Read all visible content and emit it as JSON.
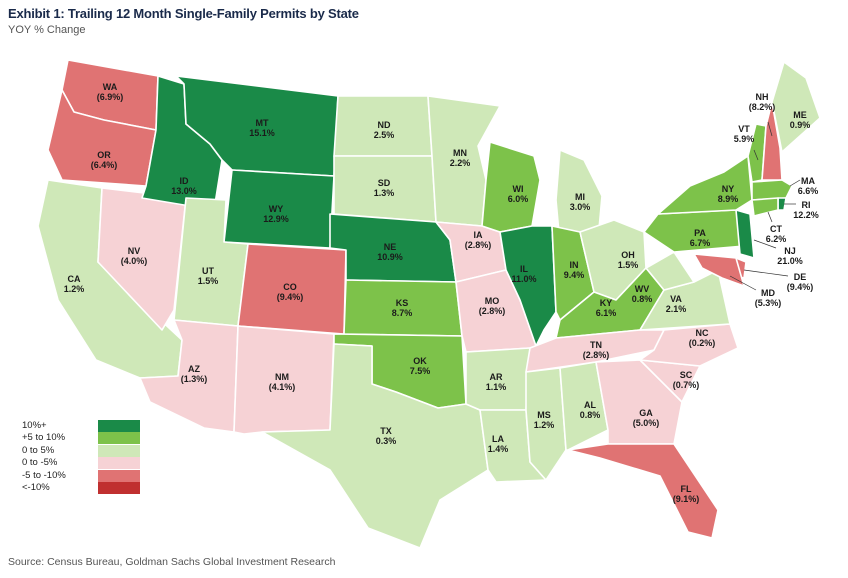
{
  "title": "Exhibit 1: Trailing 12 Month Single-Family Permits by State",
  "subtitle": "YOY % Change",
  "source": "Source: Census Bureau, Goldman Sachs Global Investment Research",
  "colors": {
    "dark_green": "#1a8a48",
    "mid_green": "#7dc24a",
    "light_green": "#cfe8b8",
    "light_pink": "#f6d2d5",
    "mid_red": "#e07373",
    "dark_red": "#c03030"
  },
  "legend": [
    {
      "label": "10%+",
      "color": "#1a8a48"
    },
    {
      "label": "+5 to 10%",
      "color": "#7dc24a"
    },
    {
      "label": "0 to 5%",
      "color": "#cfe8b8"
    },
    {
      "label": "0 to -5%",
      "color": "#f6d2d5"
    },
    {
      "label": "-5 to -10%",
      "color": "#e07373"
    },
    {
      "label": "<-10%",
      "color": "#c03030"
    }
  ],
  "states": [
    {
      "abbr": "WA",
      "value": "(6.9%)",
      "category": "mid_red"
    },
    {
      "abbr": "OR",
      "value": "(6.4%)",
      "category": "mid_red"
    },
    {
      "abbr": "CA",
      "value": "1.2%",
      "category": "light_green"
    },
    {
      "abbr": "NV",
      "value": "(4.0%)",
      "category": "light_pink"
    },
    {
      "abbr": "ID",
      "value": "13.0%",
      "category": "dark_green"
    },
    {
      "abbr": "MT",
      "value": "15.1%",
      "category": "dark_green"
    },
    {
      "abbr": "WY",
      "value": "12.9%",
      "category": "dark_green"
    },
    {
      "abbr": "UT",
      "value": "1.5%",
      "category": "light_green"
    },
    {
      "abbr": "AZ",
      "value": "(1.3%)",
      "category": "light_pink"
    },
    {
      "abbr": "CO",
      "value": "(9.4%)",
      "category": "mid_red"
    },
    {
      "abbr": "NM",
      "value": "(4.1%)",
      "category": "light_pink"
    },
    {
      "abbr": "ND",
      "value": "2.5%",
      "category": "light_green"
    },
    {
      "abbr": "SD",
      "value": "1.3%",
      "category": "light_green"
    },
    {
      "abbr": "NE",
      "value": "10.9%",
      "category": "dark_green"
    },
    {
      "abbr": "KS",
      "value": "8.7%",
      "category": "mid_green"
    },
    {
      "abbr": "OK",
      "value": "7.5%",
      "category": "mid_green"
    },
    {
      "abbr": "TX",
      "value": "0.3%",
      "category": "light_green"
    },
    {
      "abbr": "MN",
      "value": "2.2%",
      "category": "light_green"
    },
    {
      "abbr": "IA",
      "value": "(2.8%)",
      "category": "light_pink"
    },
    {
      "abbr": "MO",
      "value": "(2.8%)",
      "category": "light_pink"
    },
    {
      "abbr": "AR",
      "value": "1.1%",
      "category": "light_green"
    },
    {
      "abbr": "LA",
      "value": "1.4%",
      "category": "light_green"
    },
    {
      "abbr": "WI",
      "value": "6.0%",
      "category": "mid_green"
    },
    {
      "abbr": "IL",
      "value": "11.0%",
      "category": "dark_green"
    },
    {
      "abbr": "MI",
      "value": "3.0%",
      "category": "light_green"
    },
    {
      "abbr": "IN",
      "value": "9.4%",
      "category": "mid_green"
    },
    {
      "abbr": "OH",
      "value": "1.5%",
      "category": "light_green"
    },
    {
      "abbr": "KY",
      "value": "6.1%",
      "category": "mid_green"
    },
    {
      "abbr": "TN",
      "value": "(2.8%)",
      "category": "light_pink"
    },
    {
      "abbr": "MS",
      "value": "1.2%",
      "category": "light_green"
    },
    {
      "abbr": "AL",
      "value": "0.8%",
      "category": "light_green"
    },
    {
      "abbr": "GA",
      "value": "(5.0%)",
      "category": "light_pink"
    },
    {
      "abbr": "FL",
      "value": "(9.1%)",
      "category": "mid_red"
    },
    {
      "abbr": "SC",
      "value": "(0.7%)",
      "category": "light_pink"
    },
    {
      "abbr": "NC",
      "value": "(0.2%)",
      "category": "light_pink"
    },
    {
      "abbr": "VA",
      "value": "2.1%",
      "category": "light_green"
    },
    {
      "abbr": "WV",
      "value": "0.8%",
      "category": "light_green"
    },
    {
      "abbr": "PA",
      "value": "6.7%",
      "category": "mid_green"
    },
    {
      "abbr": "NY",
      "value": "8.9%",
      "category": "mid_green"
    },
    {
      "abbr": "VT",
      "value": "5.9%",
      "category": "mid_green"
    },
    {
      "abbr": "NH",
      "value": "(8.2%)",
      "category": "mid_red"
    },
    {
      "abbr": "ME",
      "value": "0.9%",
      "category": "light_green"
    },
    {
      "abbr": "MA",
      "value": "6.6%",
      "category": "mid_green"
    },
    {
      "abbr": "RI",
      "value": "12.2%",
      "category": "dark_green"
    },
    {
      "abbr": "CT",
      "value": "6.2%",
      "category": "mid_green"
    },
    {
      "abbr": "NJ",
      "value": "21.0%",
      "category": "dark_green"
    },
    {
      "abbr": "DE",
      "value": "(9.4%)",
      "category": "mid_red"
    },
    {
      "abbr": "MD",
      "value": "(5.3%)",
      "category": "mid_red"
    }
  ]
}
